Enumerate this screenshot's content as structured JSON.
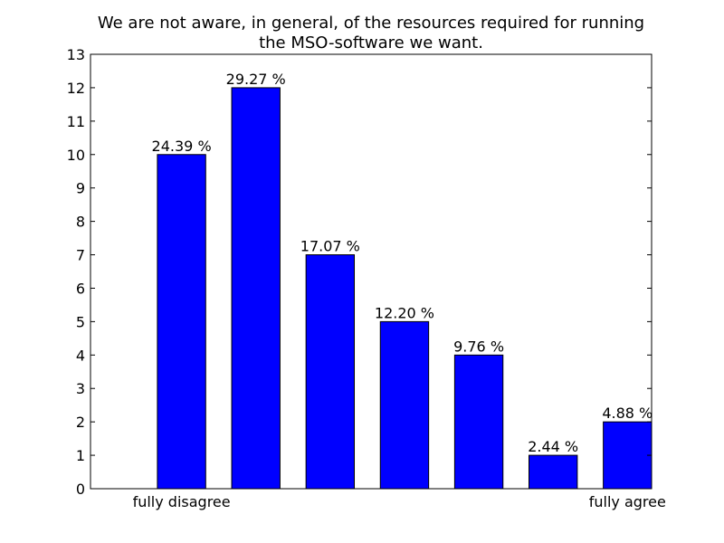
{
  "chart_data": {
    "type": "bar",
    "title_lines": [
      "We are not aware, in general, of the resources required for running",
      "the MSO-software we want."
    ],
    "categories": [
      "fully disagree",
      "",
      "",
      "",
      "",
      "",
      "fully agree"
    ],
    "values": [
      10,
      12,
      7,
      5,
      4,
      1,
      2
    ],
    "data_labels": [
      "24.39 %",
      "29.27 %",
      "17.07 %",
      "12.20 %",
      "9.76 %",
      "2.44 %",
      "4.88 %"
    ],
    "ylim": [
      0,
      13
    ],
    "yticks": [
      "0",
      "1",
      "2",
      "3",
      "4",
      "5",
      "6",
      "7",
      "8",
      "9",
      "10",
      "11",
      "12",
      "13"
    ],
    "xticks": [
      "fully disagree",
      "fully agree"
    ],
    "xlabel": "",
    "ylabel": "",
    "grid": false,
    "bar_color": "#0000ff",
    "edge_color": "#000000"
  }
}
